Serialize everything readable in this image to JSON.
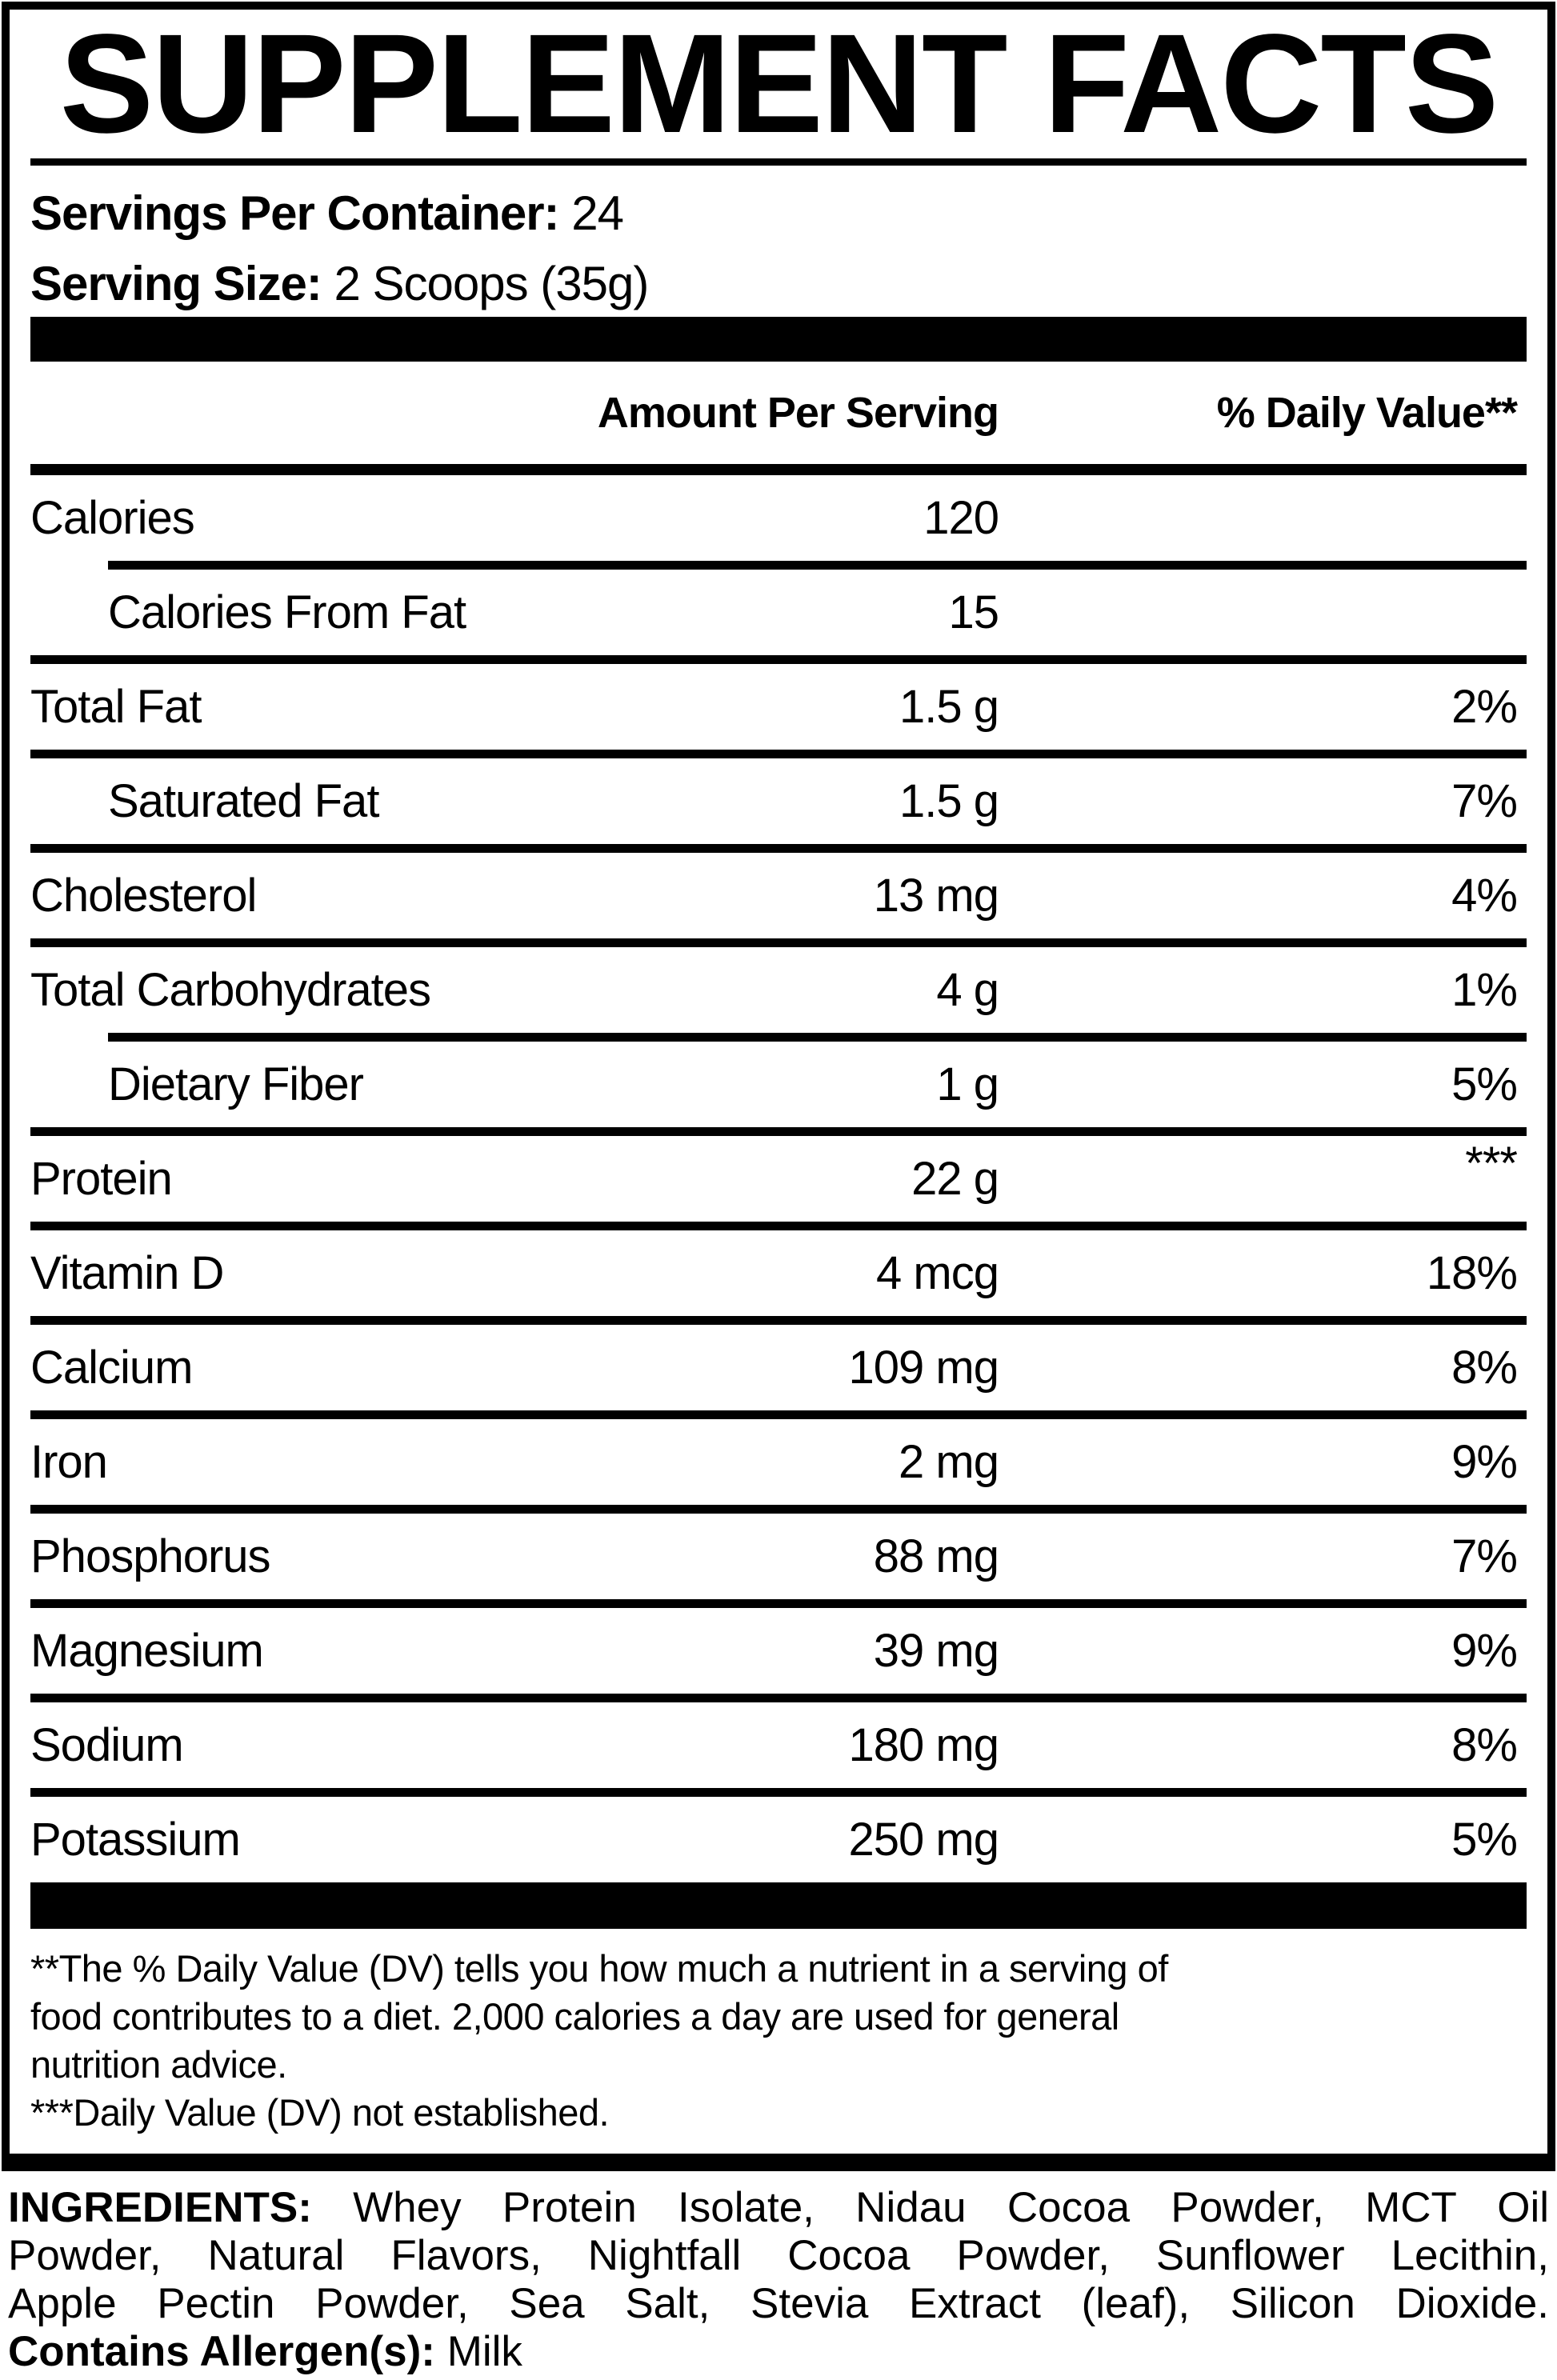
{
  "title": "SUPPLEMENT FACTS",
  "serving_info": {
    "servings_per_container_label": "Servings Per Container:",
    "servings_per_container_value": " 24",
    "serving_size_label": "Serving Size:",
    "serving_size_value": " 2 Scoops (35g)"
  },
  "table": {
    "amount_header": "Amount Per Serving",
    "dv_header": "% Daily Value**",
    "rows": [
      {
        "label": "Calories",
        "amount": "120",
        "dv": "",
        "indent": false,
        "sep_after": "indent"
      },
      {
        "label": "Calories From Fat",
        "amount": "15",
        "dv": "",
        "indent": true,
        "sep_after": "full"
      },
      {
        "label": "Total Fat",
        "amount": "1.5 g",
        "dv": "2%",
        "indent": false,
        "sep_after": "full"
      },
      {
        "label": "Saturated Fat",
        "amount": "1.5 g",
        "dv": "7%",
        "indent": true,
        "sep_after": "full"
      },
      {
        "label": "Cholesterol",
        "amount": "13 mg",
        "dv": "4%",
        "indent": false,
        "sep_after": "full"
      },
      {
        "label": "Total Carbohydrates",
        "amount": "4 g",
        "dv": "1%",
        "indent": false,
        "sep_after": "indent"
      },
      {
        "label": "Dietary Fiber",
        "amount": "1 g",
        "dv": "5%",
        "indent": true,
        "sep_after": "full"
      },
      {
        "label": "Protein",
        "amount": "22 g",
        "dv": "***",
        "indent": false,
        "dv_top": true,
        "sep_after": "full"
      },
      {
        "label": "Vitamin D",
        "amount": "4 mcg",
        "dv": "18%",
        "indent": false,
        "sep_after": "full"
      },
      {
        "label": "Calcium",
        "amount": "109 mg",
        "dv": "8%",
        "indent": false,
        "sep_after": "full"
      },
      {
        "label": "Iron",
        "amount": "2 mg",
        "dv": "9%",
        "indent": false,
        "sep_after": "full"
      },
      {
        "label": "Phosphorus",
        "amount": "88 mg",
        "dv": "7%",
        "indent": false,
        "sep_after": "full"
      },
      {
        "label": "Magnesium",
        "amount": "39 mg",
        "dv": "9%",
        "indent": false,
        "sep_after": "full"
      },
      {
        "label": "Sodium",
        "amount": "180 mg",
        "dv": "8%",
        "indent": false,
        "sep_after": "full"
      },
      {
        "label": "Potassium",
        "amount": "250 mg",
        "dv": "5%",
        "indent": false,
        "sep_after": "none"
      }
    ]
  },
  "footnotes": {
    "lines": [
      "**The % Daily Value (DV) tells you how much a nutrient in a serving of",
      "food contributes to a diet. 2,000 calories a day are used for general",
      "nutrition advice.",
      "***Daily Value (DV) not established."
    ]
  },
  "ingredients": {
    "label": "INGREDIENTS:",
    "line1_rest": " Whey Protein Isolate, Nidau Cocoa Powder, MCT Oil",
    "line2": "Powder, Natural Flavors, Nightfall Cocoa Powder, Sunflower Lecithin,",
    "line3": "Apple Pectin Powder, Sea Salt, Stevia Extract (leaf), Silicon Dioxide.",
    "allergen_label": "Contains Allergen(s):",
    "allergen_value": " Milk"
  },
  "colors": {
    "ink": "#000000",
    "paper": "#ffffff"
  }
}
